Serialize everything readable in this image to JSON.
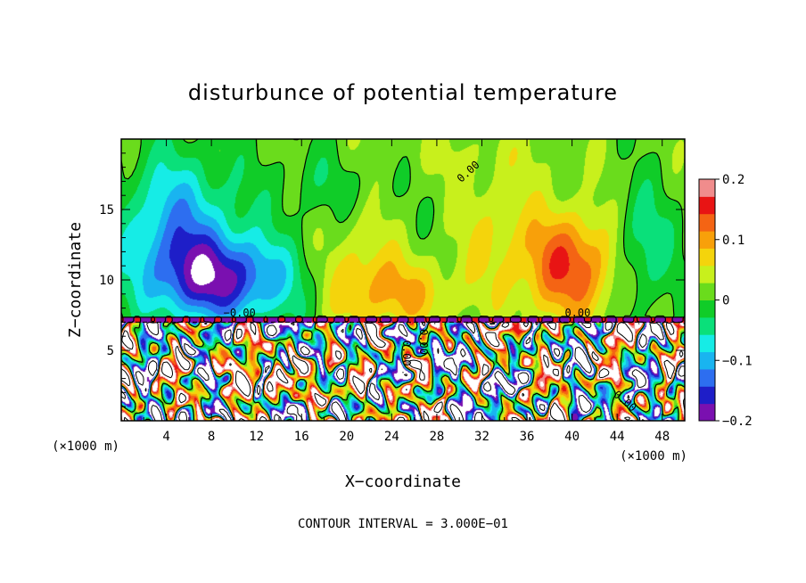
{
  "palette": [
    "#7a10b0",
    "#1e1ec8",
    "#2d6ef0",
    "#19b4f0",
    "#16ece6",
    "#0ae07a",
    "#10cc28",
    "#6adc1c",
    "#c8f01c",
    "#f4d40c",
    "#f8a00a",
    "#f46414",
    "#e81414",
    "#f08c8c",
    "#ffffff",
    "#000000"
  ],
  "chart_data": {
    "type": "heatmap",
    "title": "disturbunce of potential temperature",
    "xlabel": "X−coordinate",
    "ylabel": "Z−coordinate",
    "x_unit_note": "(×1000 m)",
    "x_unit_note_right": "(×1000 m)",
    "x_ticks": [
      "4",
      "8",
      "12",
      "16",
      "20",
      "24",
      "28",
      "32",
      "36",
      "40",
      "44",
      "48"
    ],
    "y_ticks": [
      "5",
      "10",
      "15"
    ],
    "xlim": [
      0,
      50
    ],
    "ylim": [
      0,
      20
    ],
    "colorbar": {
      "range": [
        -0.2,
        0.2
      ],
      "ticks": [
        "0.2",
        "0.1",
        "0",
        "−0.1",
        "−0.2"
      ]
    },
    "contour_labels": [
      "0.00",
      "−0.00",
      "0.00",
      "0.00",
      "0.00",
      "0.00"
    ],
    "contour_interval_text": "CONTOUR INTERVAL = 3.000E−01",
    "upper_layer_features": [
      {
        "x": 5,
        "z": 14,
        "sigma_x": 3.5,
        "sigma_z": 3.5,
        "value": -0.11
      },
      {
        "x": 9,
        "z": 10,
        "sigma_x": 4.5,
        "sigma_z": 2.2,
        "value": -0.17
      },
      {
        "x": 46,
        "z": 12,
        "sigma_x": 2.0,
        "sigma_z": 3.0,
        "value": -0.08
      },
      {
        "x": 40,
        "z": 11,
        "sigma_x": 3.5,
        "sigma_z": 2.8,
        "value": 0.13
      },
      {
        "x": 25,
        "z": 9,
        "sigma_x": 4.0,
        "sigma_z": 1.8,
        "value": 0.07
      },
      {
        "x": 21,
        "z": 11,
        "sigma_x": 2.5,
        "sigma_z": 3.0,
        "value": 0.05
      },
      {
        "x": 33,
        "z": 14,
        "sigma_x": 2.5,
        "sigma_z": 3.0,
        "value": 0.04
      },
      {
        "x": 18,
        "z": 17,
        "sigma_x": 4.0,
        "sigma_z": 2.0,
        "value": -0.03
      },
      {
        "x": 30,
        "z": 19,
        "sigma_x": 8.0,
        "sigma_z": 1.5,
        "value": 0.02
      }
    ],
    "lower_layer_top_z": 7.2,
    "lower_layer_amplitude": 0.35
  }
}
